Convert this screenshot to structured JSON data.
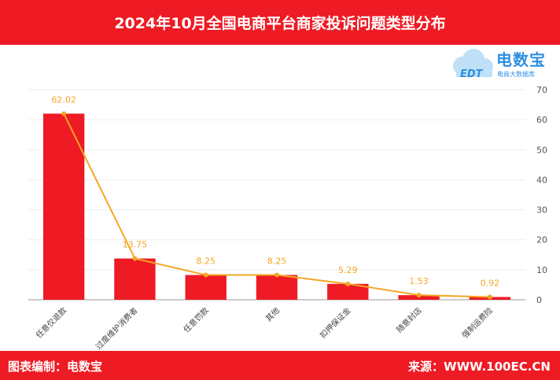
{
  "header": {
    "title": "2024年10月全国电商平台商家投诉问题类型分布"
  },
  "footer": {
    "left": "图表编制：电数宝",
    "right": "来源：WWW.100EC.CN"
  },
  "logo": {
    "main": "电数宝",
    "sub": "电商大数据库",
    "badge": "EDT"
  },
  "colors": {
    "accent": "#ee1b24",
    "bar": "#ee1b24",
    "line": "#f5a623",
    "logo": "#2f8fe0"
  },
  "chart_data": {
    "type": "bar",
    "title": "2024年10月全国电商平台商家投诉问题类型分布",
    "categories": [
      "任意仅退款",
      "过度维护消费者",
      "任意罚款",
      "其他",
      "扣押保证金",
      "随意封店",
      "强制运费险"
    ],
    "values": [
      62.02,
      13.75,
      8.25,
      8.25,
      5.29,
      1.53,
      0.92
    ],
    "data_labels": [
      "62.02",
      "13.75",
      "8.25",
      "8.25",
      "5.29",
      "1.53",
      "0.92"
    ],
    "y_ticks": [
      "0",
      "10",
      "20",
      "30",
      "40",
      "50",
      "60",
      "70"
    ],
    "ylim": [
      0,
      70
    ],
    "overlay_line": true,
    "grid": true,
    "y_axis_side": "right"
  }
}
